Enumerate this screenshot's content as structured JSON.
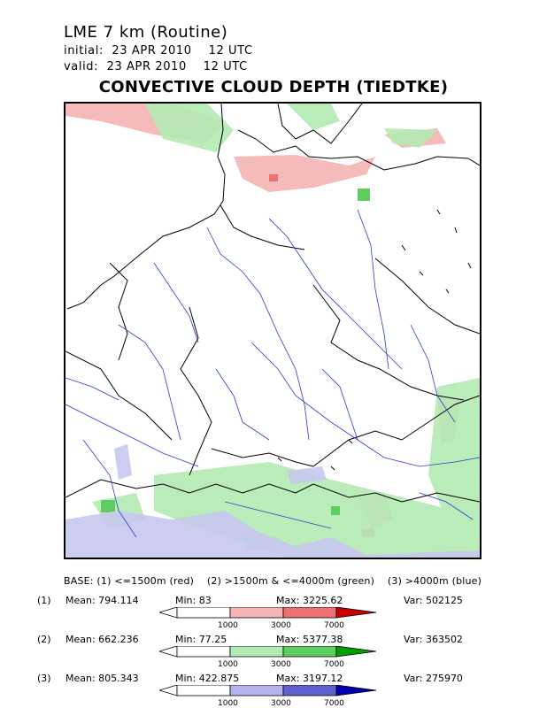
{
  "header": {
    "model": "LME 7 km (Routine)",
    "initial": "initial:  23 APR 2010    12 UTC",
    "valid": "valid:  23 APR 2010    12 UTC",
    "title": "CONVECTIVE CLOUD DEPTH (TIEDTKE)"
  },
  "legend": {
    "base": "BASE: (1) <=1500m (red)    (2) >1500m & <=4000m (green)    (3) >4000m (blue)",
    "rows": [
      {
        "label": "(1)",
        "mean": "Mean: 794.114",
        "min": "Min: 83",
        "max": "Max: 3225.62",
        "var": "Var: 502125",
        "colors": [
          "#ffffff",
          "#f5b3b3",
          "#eb7070",
          "#cc0000"
        ]
      },
      {
        "label": "(2)",
        "mean": "Mean: 662.236",
        "min": "Min: 77.25",
        "max": "Max: 5377.38",
        "var": "Var: 363502",
        "colors": [
          "#ffffff",
          "#b3ebb3",
          "#5fcc5f",
          "#00a000"
        ]
      },
      {
        "label": "(3)",
        "mean": "Mean: 805.343",
        "min": "Min: 422.875",
        "max": "Max: 3197.12",
        "var": "Var: 275970",
        "colors": [
          "#ffffff",
          "#b3b3eb",
          "#6060d0",
          "#0000b0"
        ]
      }
    ],
    "ticks": [
      "1000",
      "3000",
      "7000"
    ]
  },
  "map": {
    "coast_color": "#000000",
    "river_color": "#2a3ccc",
    "region": "Central Europe"
  }
}
